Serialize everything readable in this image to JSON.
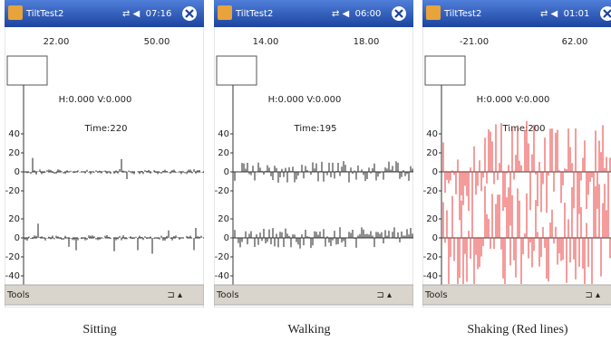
{
  "screens": [
    {
      "title": "TiltTest2",
      "clock": "07:16",
      "readouts": [
        "22.00",
        "50.00"
      ],
      "status": "H:0.000 V:0.000",
      "time": "Time:220",
      "upper_ticks": [
        40,
        20,
        0,
        -20
      ],
      "lower_ticks": [
        20,
        0,
        -20,
        -40
      ],
      "toolbar": "Tools",
      "caption": "Sitting",
      "trace_color": "#222222"
    },
    {
      "title": "TiltTest2",
      "clock": "06:00",
      "readouts": [
        "14.00",
        "18.00"
      ],
      "status": "H:0.000 V:0.000",
      "time": "Time:195",
      "upper_ticks": [
        40,
        20,
        0,
        -20
      ],
      "lower_ticks": [
        20,
        0,
        -20,
        -40
      ],
      "toolbar": "Tools",
      "caption": "Walking",
      "trace_color": "#222222"
    },
    {
      "title": "TiltTest2",
      "clock": "01:01",
      "readouts": [
        "-21.00",
        "62.00"
      ],
      "status": "H:0.000 V:0.000",
      "time": "Time:200",
      "upper_ticks": [
        40,
        20,
        0,
        -20
      ],
      "lower_ticks": [
        20,
        0,
        -20,
        -40
      ],
      "toolbar": "Tools",
      "caption": "Shaking (Red lines)",
      "trace_color": "#e83a3a"
    }
  ]
}
